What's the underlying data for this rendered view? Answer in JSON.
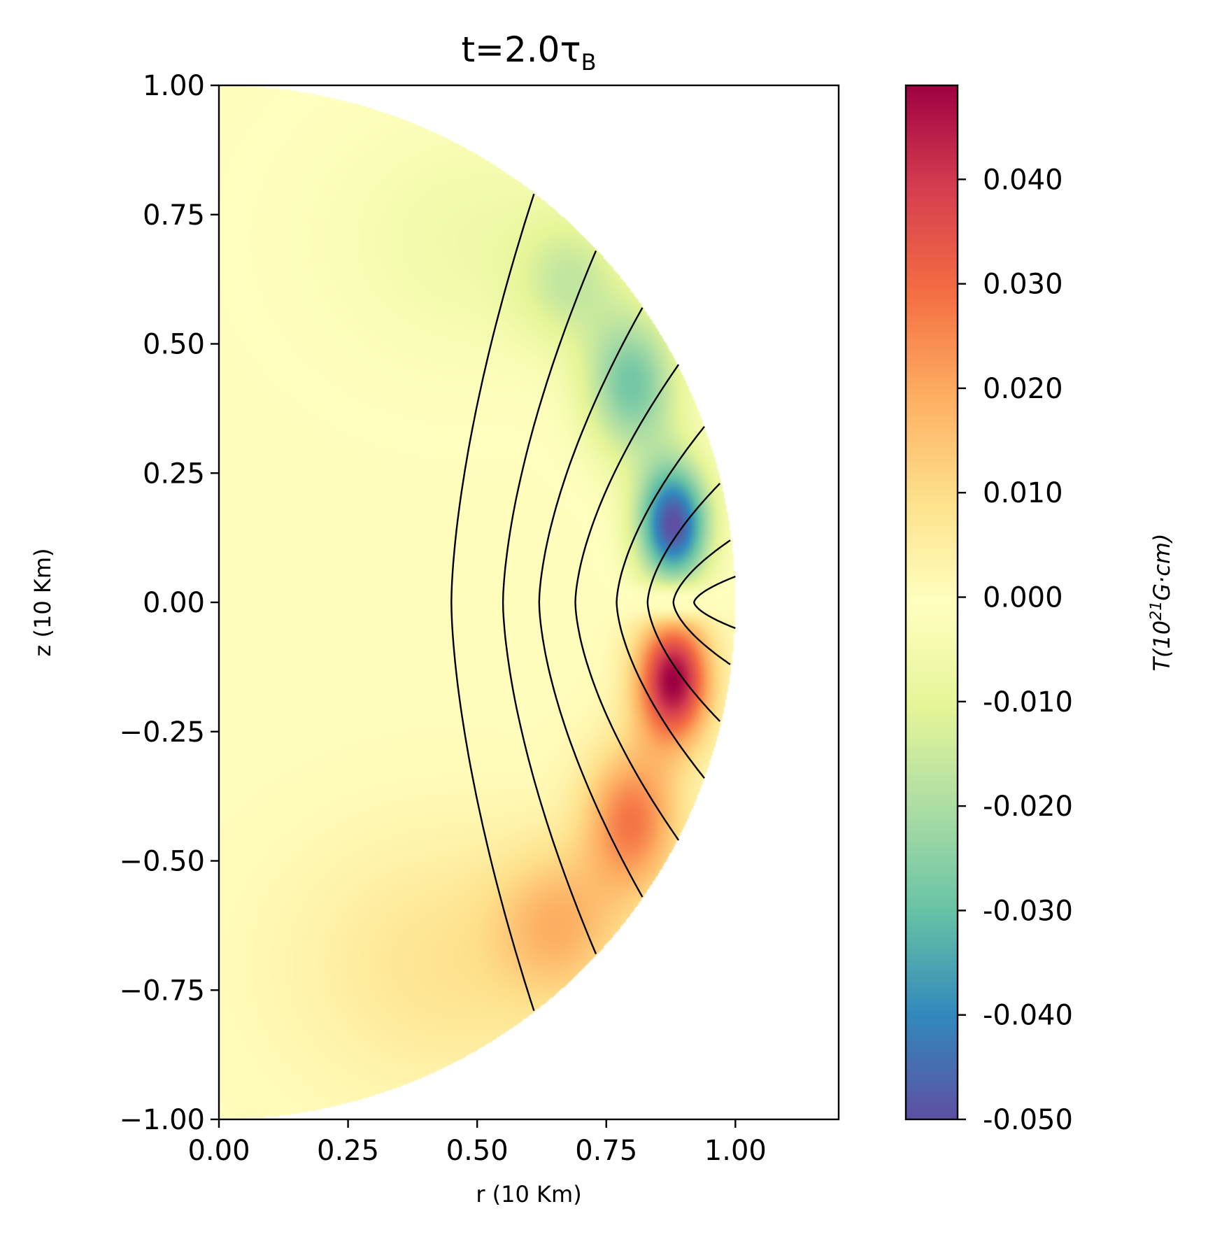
{
  "chart_data": {
    "type": "heatmap",
    "title": "t=2.0",
    "title_symbol": "τ",
    "title_subscript": "B",
    "xlabel": "r (10 Km)",
    "ylabel": "z (10 Km)",
    "xlim": [
      0.0,
      1.2
    ],
    "ylim": [
      -1.0,
      1.0
    ],
    "xticks": [
      "0.00",
      "0.25",
      "0.50",
      "0.75",
      "1.00"
    ],
    "yticks": [
      "1.00",
      "0.75",
      "0.50",
      "0.25",
      "0.00",
      "−0.25",
      "−0.50",
      "−0.75",
      "−1.00"
    ],
    "domain": "half-disk of radius 1.0 centred at origin",
    "colormap": "Spectral_r",
    "colorbar": {
      "label_main": "T(10",
      "label_sup": "21",
      "label_end": "G·cm)",
      "range": [
        -0.05,
        0.049
      ],
      "ticks": [
        "0.040",
        "0.030",
        "0.020",
        "0.010",
        "0.000",
        "-0.010",
        "-0.020",
        "-0.030",
        "-0.040",
        "-0.050"
      ],
      "tick_values": [
        0.04,
        0.03,
        0.02,
        0.01,
        0.0,
        -0.01,
        -0.02,
        -0.03,
        -0.04,
        -0.05
      ]
    },
    "field_features": [
      {
        "sign": "negative",
        "peak_value": -0.05,
        "r": 0.88,
        "z": 0.15
      },
      {
        "sign": "positive",
        "peak_value": 0.049,
        "r": 0.88,
        "z": -0.15
      }
    ],
    "contour_lines": [
      {
        "r_endpoint": 0.61,
        "z_endpoint": 0.79,
        "r_at_equator": 0.45
      },
      {
        "r_endpoint": 0.73,
        "z_endpoint": 0.68,
        "r_at_equator": 0.55
      },
      {
        "r_endpoint": 0.82,
        "z_endpoint": 0.57,
        "r_at_equator": 0.62
      },
      {
        "r_endpoint": 0.89,
        "z_endpoint": 0.46,
        "r_at_equator": 0.69
      },
      {
        "r_endpoint": 0.94,
        "z_endpoint": 0.34,
        "r_at_equator": 0.77
      },
      {
        "r_endpoint": 0.97,
        "z_endpoint": 0.23,
        "r_at_equator": 0.83
      },
      {
        "r_endpoint": 0.99,
        "z_endpoint": 0.12,
        "r_at_equator": 0.88
      },
      {
        "r_endpoint": 1.0,
        "z_endpoint": 0.05,
        "r_at_equator": 0.92
      }
    ],
    "grid": false,
    "legend": "none"
  }
}
